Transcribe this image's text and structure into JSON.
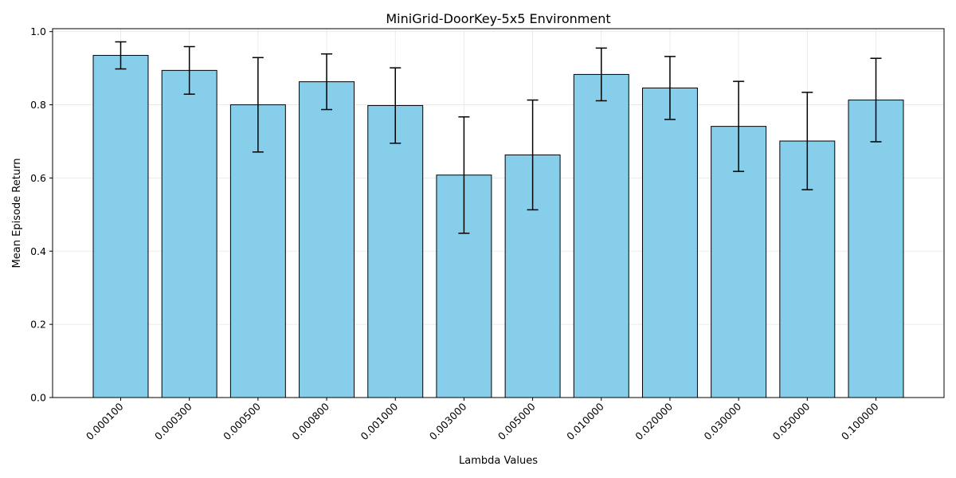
{
  "chart_data": {
    "type": "bar",
    "title": "MiniGrid-DoorKey-5x5 Environment",
    "xlabel": "Lambda Values",
    "ylabel": "Mean Episode Return",
    "categories": [
      "0.000100",
      "0.000300",
      "0.000500",
      "0.000800",
      "0.001000",
      "0.003000",
      "0.005000",
      "0.010000",
      "0.020000",
      "0.030000",
      "0.050000",
      "0.100000"
    ],
    "values": [
      0.935,
      0.894,
      0.8,
      0.863,
      0.798,
      0.608,
      0.663,
      0.883,
      0.846,
      0.741,
      0.701,
      0.813
    ],
    "errors": [
      0.037,
      0.065,
      0.129,
      0.076,
      0.103,
      0.159,
      0.15,
      0.072,
      0.086,
      0.123,
      0.133,
      0.114
    ],
    "ylim": [
      0,
      1.0
    ],
    "yticks": [
      "0.0",
      "0.2",
      "0.4",
      "0.6",
      "0.8",
      "1.0"
    ],
    "grid": true,
    "colors": {
      "bar_fill": "#87ceeb",
      "bar_edge": "#000000",
      "error_bar": "#000000",
      "grid": "#e6e6e6"
    }
  }
}
